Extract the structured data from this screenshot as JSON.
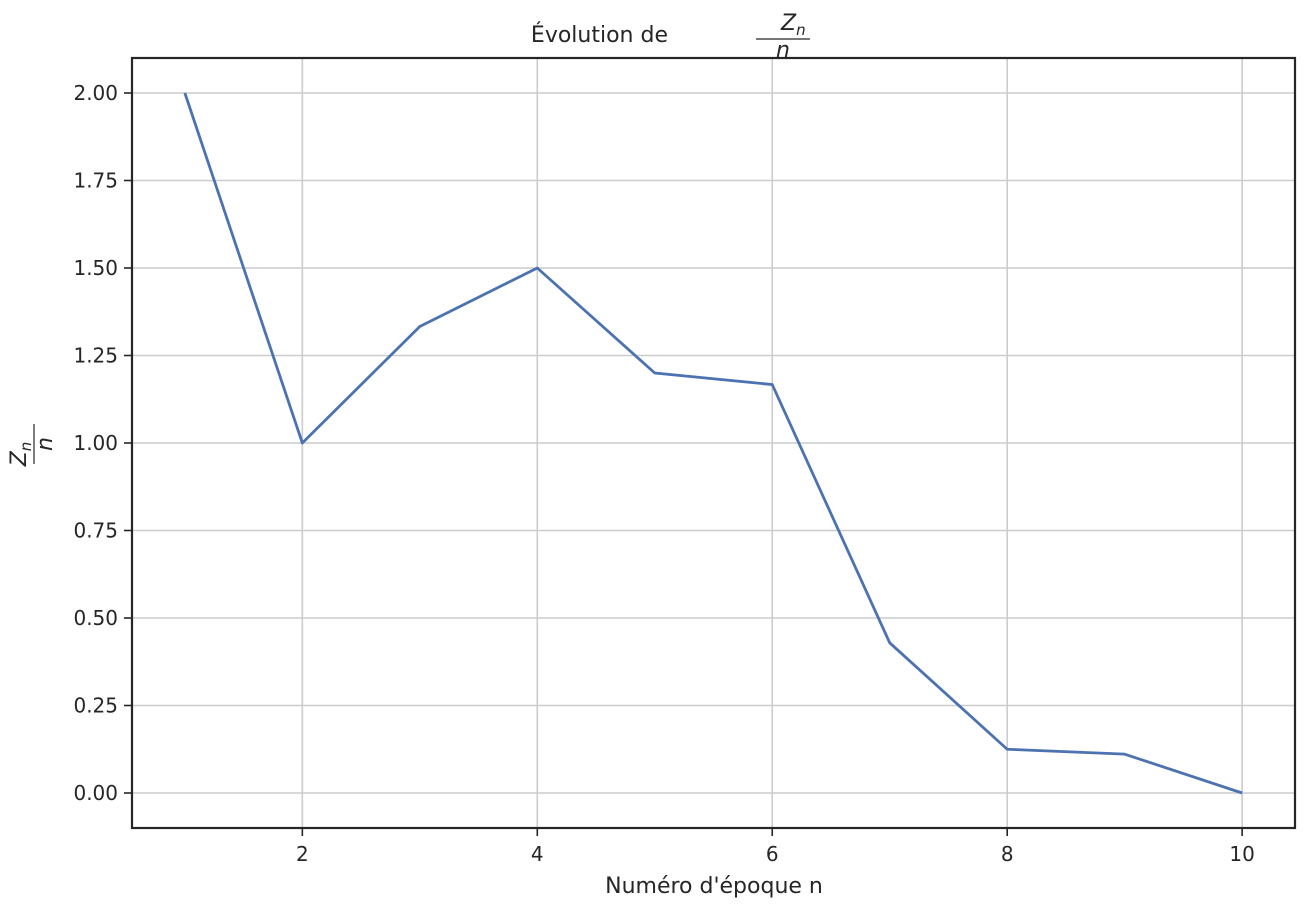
{
  "chart_data": {
    "type": "line",
    "title_prefix": "Évolution de",
    "title_fraction": {
      "numerator_base": "Z",
      "numerator_sub": "n",
      "denominator": "n"
    },
    "xlabel": "Numéro d'époque n",
    "ylabel_fraction": {
      "numerator_base": "Z",
      "numerator_sub": "n",
      "denominator": "n"
    },
    "x": [
      1,
      2,
      3,
      4,
      5,
      6,
      7,
      8,
      9,
      10
    ],
    "series": [
      {
        "values": [
          2.0,
          1.0,
          1.333,
          1.5,
          1.2,
          1.167,
          0.429,
          0.125,
          0.111,
          0.0
        ],
        "color": "#4c72b0"
      }
    ],
    "xlim": [
      0.55,
      10.45
    ],
    "ylim": [
      -0.1,
      2.1
    ],
    "xticks": [
      2,
      4,
      6,
      8,
      10
    ],
    "xtick_labels": [
      "2",
      "4",
      "6",
      "8",
      "10"
    ],
    "yticks": [
      0.0,
      0.25,
      0.5,
      0.75,
      1.0,
      1.25,
      1.5,
      1.75,
      2.0
    ],
    "ytick_labels": [
      "0.00",
      "0.25",
      "0.50",
      "0.75",
      "1.00",
      "1.25",
      "1.50",
      "1.75",
      "2.00"
    ],
    "grid": true,
    "grid_color": "#cccccc",
    "axis_color": "#262626"
  }
}
